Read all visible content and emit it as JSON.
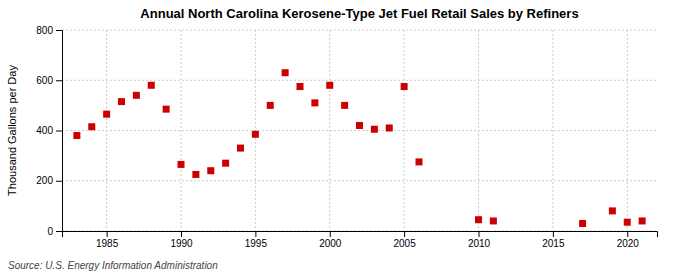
{
  "chart_data": {
    "type": "scatter",
    "title": "Annual North Carolina Kerosene-Type Jet Fuel Retail Sales by Refiners",
    "ylabel": "Thousand Gallons per Day",
    "source": "Source: U.S. Energy Information Administration",
    "color": "#cc0000",
    "marker": "square",
    "x": [
      1983,
      1984,
      1985,
      1986,
      1987,
      1988,
      1989,
      1990,
      1991,
      1992,
      1993,
      1994,
      1995,
      1996,
      1997,
      1998,
      1999,
      2000,
      2001,
      2002,
      2003,
      2004,
      2005,
      2006,
      2010,
      2011,
      2017,
      2019,
      2020,
      2021
    ],
    "values": [
      380,
      415,
      465,
      515,
      540,
      580,
      485,
      265,
      225,
      240,
      270,
      330,
      385,
      500,
      630,
      575,
      510,
      580,
      500,
      420,
      405,
      410,
      575,
      275,
      45,
      40,
      30,
      80,
      35,
      40
    ],
    "xlim": [
      1982,
      2022
    ],
    "ylim": [
      0,
      800
    ],
    "xticks": [
      1985,
      1990,
      1995,
      2000,
      2005,
      2010,
      2015,
      2020
    ],
    "yticks": [
      0,
      200,
      400,
      600,
      800
    ],
    "grid": true
  }
}
